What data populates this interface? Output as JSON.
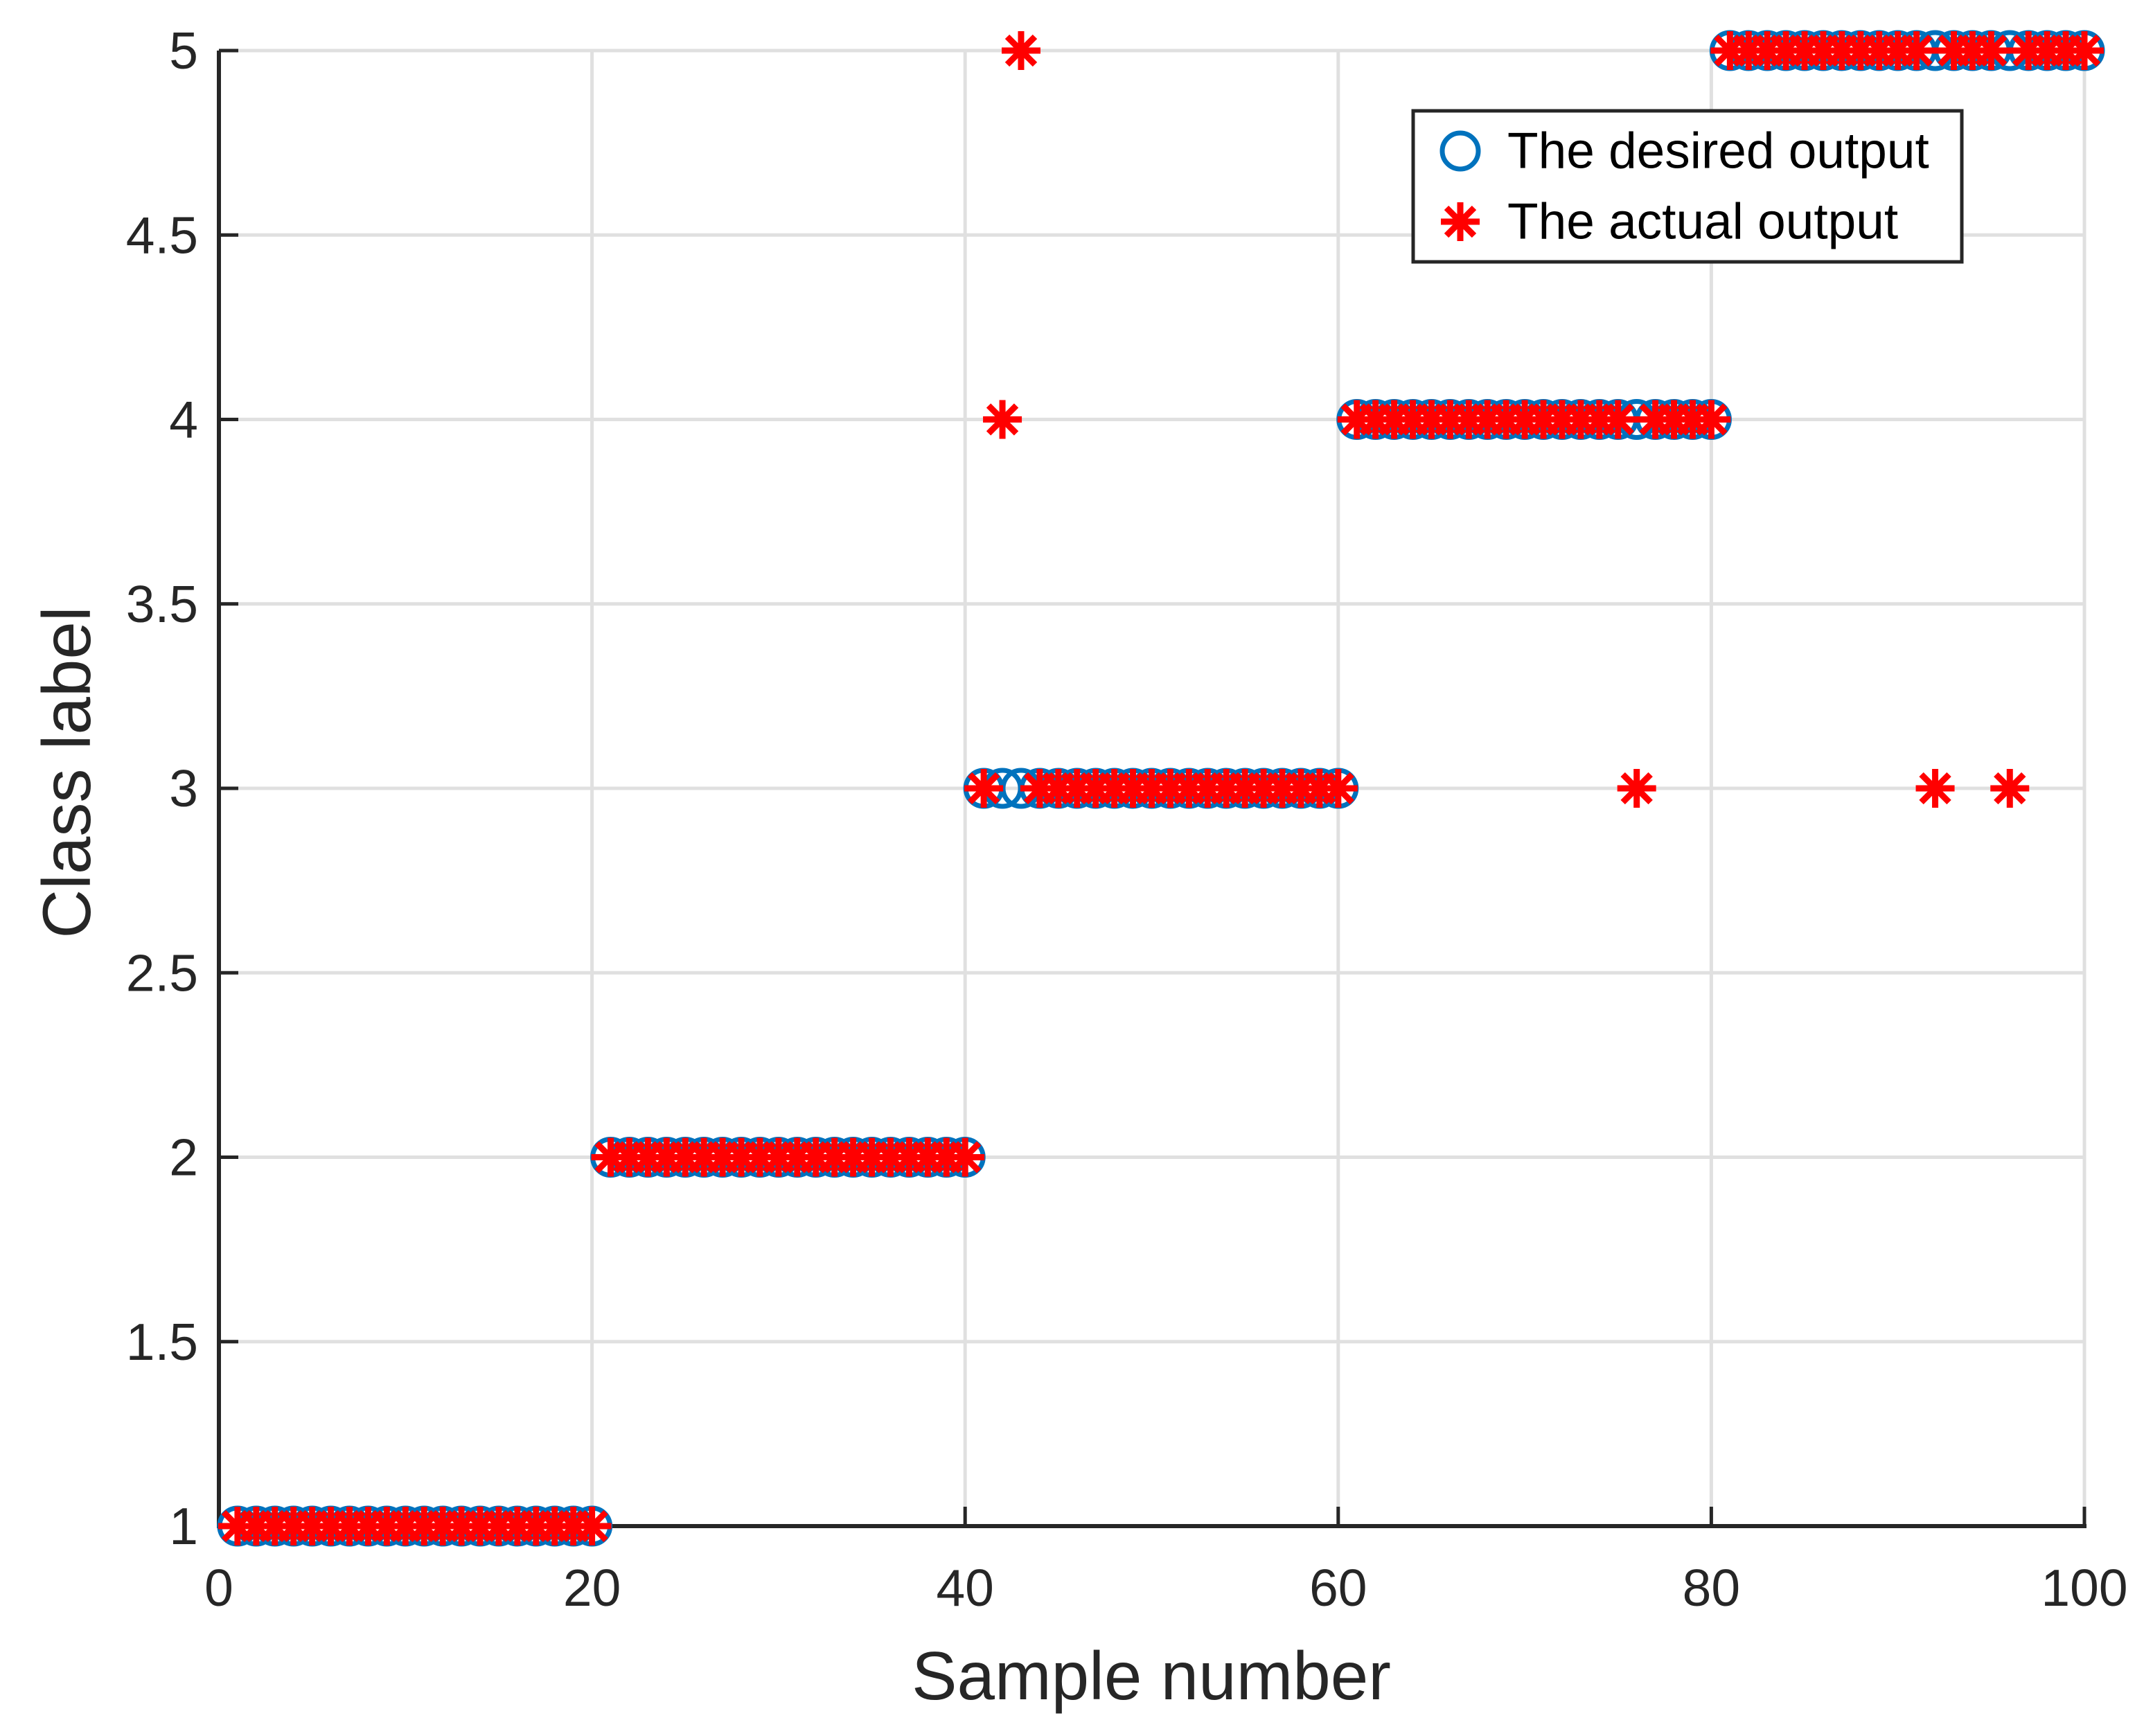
{
  "figure": {
    "background": "#FFFFFF",
    "axis_color": "#262626",
    "grid_color": "#E0E0E0",
    "text_color": "#262626"
  },
  "chart_data": {
    "type": "scatter",
    "title": "",
    "xlabel": "Sample number",
    "ylabel": "Class label",
    "xlim": [
      0,
      100
    ],
    "ylim": [
      1,
      5
    ],
    "xticks": [
      0,
      20,
      40,
      60,
      80,
      100
    ],
    "yticks": [
      1,
      1.5,
      2,
      2.5,
      3,
      3.5,
      4,
      4.5,
      5
    ],
    "grid": true,
    "legend_position": "top-right",
    "x": [
      1,
      2,
      3,
      4,
      5,
      6,
      7,
      8,
      9,
      10,
      11,
      12,
      13,
      14,
      15,
      16,
      17,
      18,
      19,
      20,
      21,
      22,
      23,
      24,
      25,
      26,
      27,
      28,
      29,
      30,
      31,
      32,
      33,
      34,
      35,
      36,
      37,
      38,
      39,
      40,
      41,
      42,
      43,
      44,
      45,
      46,
      47,
      48,
      49,
      50,
      51,
      52,
      53,
      54,
      55,
      56,
      57,
      58,
      59,
      60,
      61,
      62,
      63,
      64,
      65,
      66,
      67,
      68,
      69,
      70,
      71,
      72,
      73,
      74,
      75,
      76,
      77,
      78,
      79,
      80,
      81,
      82,
      83,
      84,
      85,
      86,
      87,
      88,
      89,
      90,
      91,
      92,
      93,
      94,
      95,
      96,
      97,
      98,
      99,
      100
    ],
    "series": [
      {
        "name": "The desired output",
        "marker": "circle",
        "color": "#0072BD",
        "values": [
          1,
          1,
          1,
          1,
          1,
          1,
          1,
          1,
          1,
          1,
          1,
          1,
          1,
          1,
          1,
          1,
          1,
          1,
          1,
          1,
          2,
          2,
          2,
          2,
          2,
          2,
          2,
          2,
          2,
          2,
          2,
          2,
          2,
          2,
          2,
          2,
          2,
          2,
          2,
          2,
          3,
          3,
          3,
          3,
          3,
          3,
          3,
          3,
          3,
          3,
          3,
          3,
          3,
          3,
          3,
          3,
          3,
          3,
          3,
          3,
          4,
          4,
          4,
          4,
          4,
          4,
          4,
          4,
          4,
          4,
          4,
          4,
          4,
          4,
          4,
          4,
          4,
          4,
          4,
          4,
          5,
          5,
          5,
          5,
          5,
          5,
          5,
          5,
          5,
          5,
          5,
          5,
          5,
          5,
          5,
          5,
          5,
          5,
          5,
          5
        ]
      },
      {
        "name": "The actual output",
        "marker": "asterisk",
        "color": "#FF0000",
        "values": [
          1,
          1,
          1,
          1,
          1,
          1,
          1,
          1,
          1,
          1,
          1,
          1,
          1,
          1,
          1,
          1,
          1,
          1,
          1,
          1,
          2,
          2,
          2,
          2,
          2,
          2,
          2,
          2,
          2,
          2,
          2,
          2,
          2,
          2,
          2,
          2,
          2,
          2,
          2,
          2,
          3,
          4,
          5,
          3,
          3,
          3,
          3,
          3,
          3,
          3,
          3,
          3,
          3,
          3,
          3,
          3,
          3,
          3,
          3,
          3,
          4,
          4,
          4,
          4,
          4,
          4,
          4,
          4,
          4,
          4,
          4,
          4,
          4,
          4,
          4,
          3,
          4,
          4,
          4,
          4,
          5,
          5,
          5,
          5,
          5,
          5,
          5,
          5,
          5,
          5,
          5,
          3,
          5,
          5,
          5,
          3,
          5,
          5,
          5,
          5
        ]
      }
    ]
  }
}
